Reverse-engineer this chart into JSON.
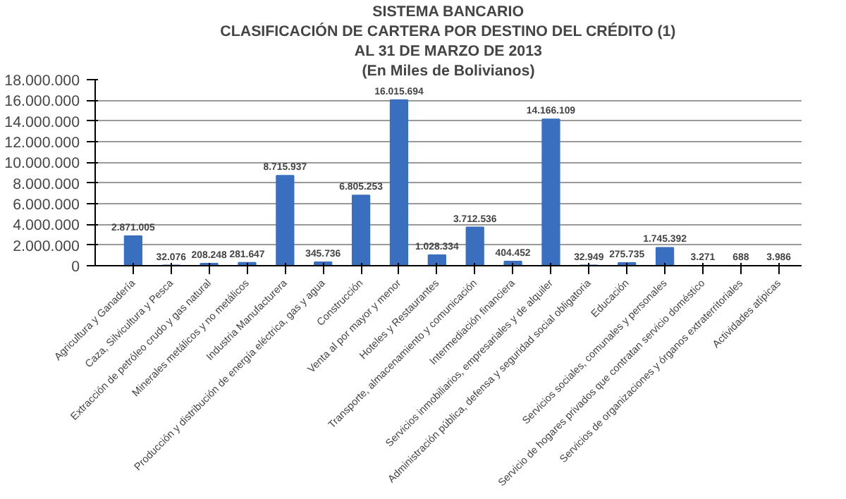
{
  "chart_data": {
    "type": "bar",
    "title": "SISTEMA BANCARIO",
    "subtitle": [
      "CLASIFICACIÓN DE CARTERA POR DESTINO DEL CRÉDITO (1)",
      "AL 31 DE MARZO DE 2013",
      "(En Miles de Bolivianos)"
    ],
    "categories": [
      "Agricultura y Ganadería",
      "Caza, Silvicultura y Pesca",
      "Extracción de petróleo crudo y gas natural",
      "Minerales metálicos y no metálicos",
      "Industria Manufacturera",
      "Producción y distribución de energía eléctrica, gas y agua",
      "Construcción",
      "Venta al por mayor y menor",
      "Hoteles y Restaurantes",
      "Transporte, almacenamiento y comunicación",
      "Intermediación financiera",
      "Servicios inmobiliarios, empresariales y de alquiler",
      "Administración pública, defensa y seguridad social obligatoria",
      "Educación",
      "Servicios sociales, comunales y personales",
      "Servicio de hogares privados que contratan servicio doméstico",
      "Servicios de organizaciones y órganos extraterritoriales",
      "Actividades atípicas"
    ],
    "values": [
      2871005,
      32076,
      208248,
      281647,
      8715937,
      345736,
      6805253,
      16015694,
      1028334,
      3712536,
      404452,
      14166109,
      32949,
      275735,
      1745392,
      3271,
      688,
      3986
    ],
    "value_labels": [
      "2.871.005",
      "32.076",
      "208.248",
      "281.647",
      "8.715.937",
      "345.736",
      "6.805.253",
      "16.015.694",
      "1.028.334",
      "3.712.536",
      "404.452",
      "14.166.109",
      "32.949",
      "275.735",
      "1.745.392",
      "3.271",
      "688",
      "3.986"
    ],
    "color": "#3a6fc0",
    "ylim": [
      0,
      18000000
    ],
    "yticks": [
      {
        "value": 0,
        "label": "0"
      },
      {
        "value": 2000000,
        "label": "2.000.000"
      },
      {
        "value": 4000000,
        "label": "4.000.000"
      },
      {
        "value": 6000000,
        "label": "6.000.000"
      },
      {
        "value": 8000000,
        "label": "8.000.000"
      },
      {
        "value": 10000000,
        "label": "10.000.000"
      },
      {
        "value": 12000000,
        "label": "12.000.000"
      },
      {
        "value": 14000000,
        "label": "14.000.000"
      },
      {
        "value": 16000000,
        "label": "16.000.000"
      },
      {
        "value": 18000000,
        "label": "18.000.000"
      }
    ],
    "grid": "y"
  }
}
